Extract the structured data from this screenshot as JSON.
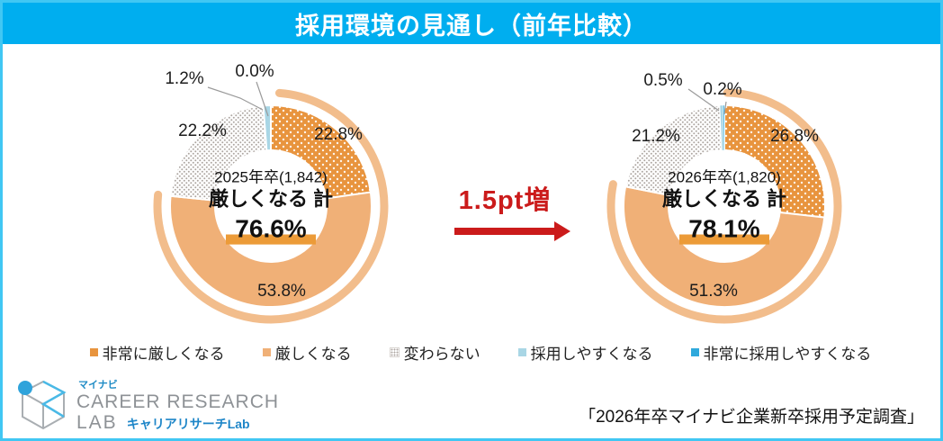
{
  "header": {
    "title": "採用環境の見通し（前年比較）"
  },
  "chart_data": {
    "type": "pie",
    "subtype": "donut-pair-comparison",
    "unit": "%",
    "legend_position": "bottom",
    "legend": [
      "非常に厳しくなる",
      "厳しくなる",
      "変わらない",
      "採用しやすくなる",
      "非常に採用しやすくなる"
    ],
    "charts": [
      {
        "center_line1": "2025年卒(1,842)",
        "center_line2": "厳しくなる 計",
        "center_line3": "76.6%",
        "cohort": "2025年卒",
        "n": 1842,
        "total_severe_pct": 76.6,
        "values": [
          22.8,
          53.8,
          22.2,
          1.2,
          0.0
        ],
        "labels": [
          "22.8%",
          "53.8%",
          "22.2%",
          "1.2%",
          "0.0%"
        ]
      },
      {
        "center_line1": "2026年卒(1,820)",
        "center_line2": "厳しくなる 計",
        "center_line3": "78.1%",
        "cohort": "2026年卒",
        "n": 1820,
        "total_severe_pct": 78.1,
        "values": [
          26.8,
          51.3,
          21.2,
          0.5,
          0.2
        ],
        "labels": [
          "26.8%",
          "51.3%",
          "21.2%",
          "0.5%",
          "0.2%"
        ]
      }
    ],
    "annotation": {
      "text": "1.5pt増"
    }
  },
  "colors": {
    "very_severe": "#E8943E",
    "severe": "#F0B077",
    "no_change_dot": "#ADA6A1",
    "easier": "#A9D6E5",
    "much_easier": "#2FA9DC",
    "arc": "#F2BD8C",
    "accent_red": "#CB1B1B",
    "header_bg": "#00AEEF",
    "frame_border": "#41C7F3",
    "highlight": "#EC9B38"
  },
  "footer": {
    "logo": {
      "brand_small": "マイナビ",
      "line1": "CAREER RESEARCH",
      "line2": "LAB",
      "line3": "キャリアリサーチLab"
    },
    "source": "「2026年卒マイナビ企業新卒採用予定調査」"
  }
}
